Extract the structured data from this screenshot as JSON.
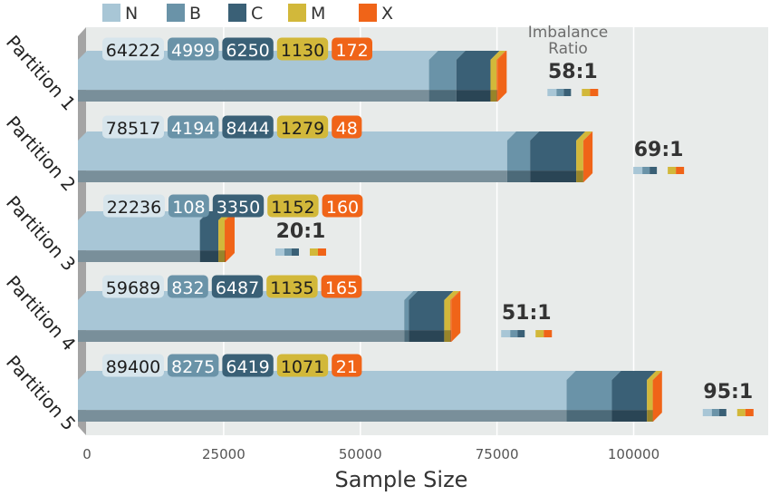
{
  "chart_data": {
    "type": "bar",
    "orientation": "horizontal",
    "stacked": true,
    "categories": [
      "Partition 1",
      "Partition 2",
      "Partition 3",
      "Partition 4",
      "Partition 5"
    ],
    "series": [
      {
        "name": "N",
        "color": "#a8c6d6",
        "values": [
          64222,
          78517,
          22236,
          59689,
          89400
        ]
      },
      {
        "name": "B",
        "color": "#6a93a8",
        "values": [
          4999,
          4194,
          108,
          832,
          8275
        ]
      },
      {
        "name": "C",
        "color": "#3a6076",
        "values": [
          6250,
          8444,
          3350,
          6487,
          6419
        ]
      },
      {
        "name": "M",
        "color": "#d2b83a",
        "values": [
          1130,
          1279,
          1152,
          1135,
          1071
        ]
      },
      {
        "name": "X",
        "color": "#f06418",
        "values": [
          172,
          48,
          160,
          165,
          21
        ]
      }
    ],
    "imbalance_ratio_label": "Imbalance Ratio",
    "imbalance_ratios": [
      "58:1",
      "69:1",
      "20:1",
      "51:1",
      "95:1"
    ],
    "xlabel": "Sample Size",
    "xlim": [
      0,
      120000
    ],
    "xticks": [
      0,
      25000,
      50000,
      75000,
      100000
    ],
    "xtick_labels": [
      "0",
      "25000",
      "50000",
      "75000",
      "100000"
    ],
    "grid": true,
    "legend_position": "top-left",
    "background_color": "#e8ebea",
    "grid_color": "#ffffff"
  }
}
